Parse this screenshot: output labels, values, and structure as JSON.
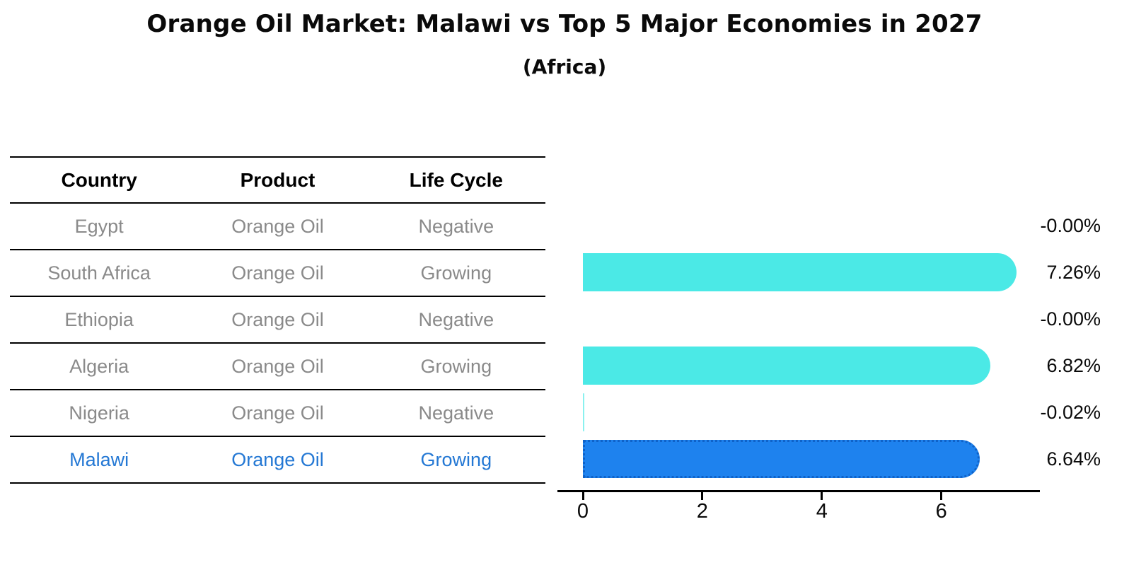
{
  "title": "Orange Oil Market: Malawi vs Top 5 Major Economies in 2027",
  "subtitle": "(Africa)",
  "colors": {
    "bar_default": "#4BE9E6",
    "bar_highlight": "#1E82EE",
    "bar_highlight_border": "#0f62c8",
    "row_text": "#8a8a8a",
    "highlight_text": "#2478d4",
    "axis": "#000000"
  },
  "table": {
    "headers": [
      "Country",
      "Product",
      "Life Cycle"
    ],
    "rows": [
      {
        "country": "Egypt",
        "product": "Orange Oil",
        "life_cycle": "Negative",
        "highlight": false
      },
      {
        "country": "South Africa",
        "product": "Orange Oil",
        "life_cycle": "Growing",
        "highlight": false
      },
      {
        "country": "Ethiopia",
        "product": "Orange Oil",
        "life_cycle": "Negative",
        "highlight": false
      },
      {
        "country": "Algeria",
        "product": "Orange Oil",
        "life_cycle": "Growing",
        "highlight": false
      },
      {
        "country": "Nigeria",
        "product": "Orange Oil",
        "life_cycle": "Negative",
        "highlight": false
      },
      {
        "country": "Malawi",
        "product": "Orange Oil",
        "life_cycle": "Growing",
        "highlight": true
      }
    ]
  },
  "chart_data": {
    "type": "bar",
    "orientation": "horizontal",
    "title": "Orange Oil Market: Malawi vs Top 5 Major Economies in 2027 (Africa)",
    "categories": [
      "Egypt",
      "South Africa",
      "Ethiopia",
      "Algeria",
      "Nigeria",
      "Malawi"
    ],
    "values": [
      -0.0,
      7.26,
      -0.0,
      6.82,
      -0.02,
      6.64
    ],
    "value_labels": [
      "-0.00%",
      "7.26%",
      "-0.00%",
      "6.82%",
      "-0.02%",
      "6.64%"
    ],
    "unit": "%",
    "xlabel": "",
    "ylabel": "",
    "xlim": [
      0,
      7.65
    ],
    "xticks": [
      0,
      2,
      4,
      6
    ],
    "xtick_labels": [
      "0",
      "2",
      "4",
      "6"
    ],
    "grid": false,
    "legend": false,
    "highlight_index": 5
  }
}
